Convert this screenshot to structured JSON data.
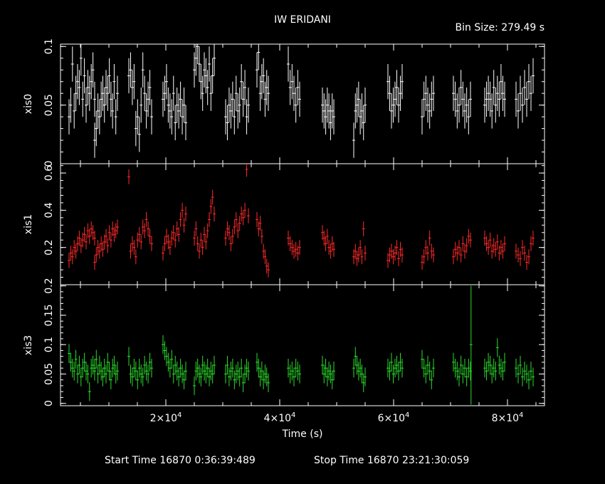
{
  "title": "IW ERIDANI",
  "bin_size": "Bin Size: 279.49 s",
  "footer": {
    "start": "Start Time 16870  0:36:39:489",
    "stop": "Stop Time 16870 23:21:30:059"
  },
  "chart_data": {
    "type": "scatter",
    "xlabel": "Time (s)",
    "xlim": [
      1500,
      86500
    ],
    "x_ticks": [
      {
        "value": 20000,
        "mantissa": "2×10",
        "exp": "4"
      },
      {
        "value": 40000,
        "mantissa": "4×10",
        "exp": "4"
      },
      {
        "value": 60000,
        "mantissa": "6×10",
        "exp": "4"
      },
      {
        "value": 80000,
        "mantissa": "8×10",
        "exp": "4"
      }
    ],
    "panels": [
      {
        "name": "xis0",
        "color": "#ffffff",
        "ylim": [
          0,
          0.102
        ],
        "err": 0.015,
        "ticks": [
          {
            "v": 0,
            "label": "0"
          },
          {
            "v": 0.05,
            "label": "0.05"
          },
          {
            "v": 0.1,
            "label": "0.1"
          }
        ],
        "segments": [
          {
            "x0": 3000,
            "x1": 7500,
            "y": [
              0.04,
              0.05,
              0.085,
              0.045,
              0.06,
              0.07,
              0.065,
              0.09,
              0.055,
              0.075,
              0.05,
              0.065,
              0.06,
              0.07,
              0.08,
              0.055
            ]
          },
          {
            "x0": 7500,
            "x1": 11500,
            "y": [
              0.02,
              0.03,
              0.045,
              0.04,
              0.055,
              0.06,
              0.05,
              0.065,
              0.06,
              0.075,
              0.055,
              0.045,
              0.07,
              0.04,
              0.06
            ]
          },
          {
            "x0": 13500,
            "x1": 17500,
            "y": [
              0.075,
              0.08,
              0.065,
              0.07,
              0.03,
              0.04,
              0.025,
              0.05,
              0.08,
              0.06,
              0.045,
              0.055,
              0.065,
              0.04
            ]
          },
          {
            "x0": 19500,
            "x1": 23500,
            "y": [
              0.055,
              0.06,
              0.07,
              0.05,
              0.045,
              0.04,
              0.06,
              0.035,
              0.05,
              0.045,
              0.055,
              0.04,
              0.05,
              0.035
            ]
          },
          {
            "x0": 25000,
            "x1": 28500,
            "y": [
              0.08,
              0.09,
              0.1,
              0.085,
              0.07,
              0.06,
              0.08,
              0.075,
              0.065,
              0.085,
              0.06,
              0.075,
              0.09
            ]
          },
          {
            "x0": 30500,
            "x1": 34500,
            "y": [
              0.04,
              0.035,
              0.05,
              0.045,
              0.055,
              0.04,
              0.06,
              0.045,
              0.05,
              0.07,
              0.055,
              0.065,
              0.04,
              0.05
            ]
          },
          {
            "x0": 36000,
            "x1": 38000,
            "y": [
              0.08,
              0.095,
              0.06,
              0.07,
              0.075,
              0.055,
              0.065,
              0.06
            ]
          },
          {
            "x0": 41500,
            "x1": 43500,
            "y": [
              0.085,
              0.065,
              0.07,
              0.06,
              0.05,
              0.065,
              0.055
            ]
          },
          {
            "x0": 47500,
            "x1": 49500,
            "y": [
              0.05,
              0.045,
              0.04,
              0.05,
              0.045,
              0.035,
              0.045,
              0.04
            ]
          },
          {
            "x0": 53000,
            "x1": 55000,
            "y": [
              0.02,
              0.045,
              0.05,
              0.055,
              0.04,
              0.045,
              0.035,
              0.05
            ]
          },
          {
            "x0": 59000,
            "x1": 61500,
            "y": [
              0.07,
              0.06,
              0.045,
              0.05,
              0.055,
              0.065,
              0.05,
              0.06,
              0.07
            ]
          },
          {
            "x0": 65000,
            "x1": 67000,
            "y": [
              0.04,
              0.055,
              0.06,
              0.05,
              0.045,
              0.055,
              0.06
            ]
          },
          {
            "x0": 70500,
            "x1": 73500,
            "y": [
              0.06,
              0.055,
              0.045,
              0.05,
              0.065,
              0.055,
              0.045,
              0.05,
              0.04,
              0.055
            ]
          },
          {
            "x0": 76000,
            "x1": 79500,
            "y": [
              0.05,
              0.055,
              0.06,
              0.055,
              0.045,
              0.065,
              0.05,
              0.06,
              0.055,
              0.07,
              0.06,
              0.055
            ]
          },
          {
            "x0": 81500,
            "x1": 84500,
            "y": [
              0.055,
              0.045,
              0.06,
              0.05,
              0.065,
              0.055,
              0.07,
              0.06,
              0.075
            ]
          }
        ]
      },
      {
        "name": "xis1",
        "color": "#ff2a2a",
        "ylim": [
          0,
          0.65
        ],
        "err": 0.04,
        "ticks": [
          {
            "v": 0.2,
            "label": "0.2"
          },
          {
            "v": 0.4,
            "label": "0.4"
          },
          {
            "v": 0.6,
            "label": "0.6"
          }
        ],
        "segments": [
          {
            "x0": 3000,
            "x1": 7500,
            "y": [
              0.13,
              0.17,
              0.15,
              0.2,
              0.18,
              0.22,
              0.25,
              0.21,
              0.24,
              0.27,
              0.23,
              0.29,
              0.26,
              0.3,
              0.28,
              0.25
            ]
          },
          {
            "x0": 7500,
            "x1": 11500,
            "y": [
              0.12,
              0.16,
              0.2,
              0.18,
              0.22,
              0.19,
              0.23,
              0.26,
              0.21,
              0.28,
              0.24,
              0.3,
              0.27,
              0.29,
              0.31
            ]
          },
          {
            "x0": 13500,
            "x1": 17500,
            "y": [
              0.58,
              0.18,
              0.22,
              0.2,
              0.15,
              0.24,
              0.27,
              0.23,
              0.31,
              0.29,
              0.35,
              0.3,
              0.26,
              0.22
            ]
          },
          {
            "x0": 19500,
            "x1": 23500,
            "y": [
              0.17,
              0.22,
              0.26,
              0.23,
              0.2,
              0.25,
              0.28,
              0.24,
              0.3,
              0.27,
              0.35,
              0.4,
              0.32,
              0.38
            ]
          },
          {
            "x0": 25000,
            "x1": 28500,
            "y": [
              0.25,
              0.3,
              0.22,
              0.18,
              0.24,
              0.2,
              0.27,
              0.23,
              0.29,
              0.35,
              0.42,
              0.47,
              0.38
            ]
          },
          {
            "x0": 30500,
            "x1": 34500,
            "y": [
              0.25,
              0.3,
              0.28,
              0.22,
              0.26,
              0.31,
              0.35,
              0.29,
              0.33,
              0.38,
              0.36,
              0.4,
              0.62,
              0.37
            ]
          },
          {
            "x0": 36000,
            "x1": 38000,
            "y": [
              0.35,
              0.3,
              0.33,
              0.26,
              0.18,
              0.15,
              0.1,
              0.08
            ]
          },
          {
            "x0": 41500,
            "x1": 43500,
            "y": [
              0.25,
              0.22,
              0.2,
              0.18,
              0.19,
              0.17,
              0.2
            ]
          },
          {
            "x0": 47500,
            "x1": 49500,
            "y": [
              0.28,
              0.25,
              0.22,
              0.26,
              0.2,
              0.18,
              0.22,
              0.19
            ]
          },
          {
            "x0": 53000,
            "x1": 55000,
            "y": [
              0.15,
              0.18,
              0.14,
              0.16,
              0.2,
              0.15,
              0.3,
              0.17
            ]
          },
          {
            "x0": 59000,
            "x1": 61500,
            "y": [
              0.13,
              0.16,
              0.18,
              0.15,
              0.17,
              0.2,
              0.14,
              0.19,
              0.16
            ]
          },
          {
            "x0": 65000,
            "x1": 67000,
            "y": [
              0.12,
              0.15,
              0.2,
              0.17,
              0.25,
              0.18,
              0.16
            ]
          },
          {
            "x0": 70500,
            "x1": 73500,
            "y": [
              0.15,
              0.19,
              0.17,
              0.2,
              0.16,
              0.22,
              0.18,
              0.21,
              0.26,
              0.24
            ]
          },
          {
            "x0": 76000,
            "x1": 79500,
            "y": [
              0.25,
              0.22,
              0.2,
              0.24,
              0.18,
              0.21,
              0.19,
              0.23,
              0.17,
              0.2,
              0.18,
              0.22
            ]
          },
          {
            "x0": 81500,
            "x1": 84500,
            "y": [
              0.18,
              0.16,
              0.14,
              0.2,
              0.17,
              0.12,
              0.15,
              0.22,
              0.25
            ]
          }
        ]
      },
      {
        "name": "xis3",
        "color": "#2bdc2b",
        "ylim": [
          -0.004,
          0.202
        ],
        "err": 0.016,
        "ticks": [
          {
            "v": 0,
            "label": "0"
          },
          {
            "v": 0.05,
            "label": "0.05"
          },
          {
            "v": 0.1,
            "label": "0.1"
          },
          {
            "v": 0.15,
            "label": "0.15"
          },
          {
            "v": 0.2,
            "label": "0.2"
          }
        ],
        "segments": [
          {
            "x0": 3000,
            "x1": 7500,
            "y": [
              0.085,
              0.07,
              0.06,
              0.055,
              0.075,
              0.05,
              0.065,
              0.045,
              0.06,
              0.07,
              0.055,
              0.05,
              0.02,
              0.06,
              0.065,
              0.055
            ]
          },
          {
            "x0": 7500,
            "x1": 11500,
            "y": [
              0.06,
              0.075,
              0.05,
              0.065,
              0.055,
              0.045,
              0.06,
              0.05,
              0.07,
              0.055,
              0.04,
              0.06,
              0.065,
              0.05,
              0.055
            ]
          },
          {
            "x0": 13500,
            "x1": 17500,
            "y": [
              0.08,
              0.05,
              0.045,
              0.06,
              0.055,
              0.04,
              0.06,
              0.05,
              0.045,
              0.065,
              0.055,
              0.05,
              0.07,
              0.06
            ]
          },
          {
            "x0": 19500,
            "x1": 23500,
            "y": [
              0.1,
              0.09,
              0.08,
              0.07,
              0.06,
              0.075,
              0.05,
              0.065,
              0.055,
              0.045,
              0.06,
              0.05,
              0.04,
              0.055
            ]
          },
          {
            "x0": 25000,
            "x1": 28500,
            "y": [
              0.03,
              0.055,
              0.06,
              0.05,
              0.045,
              0.065,
              0.055,
              0.05,
              0.06,
              0.045,
              0.055,
              0.05,
              0.065
            ]
          },
          {
            "x0": 30500,
            "x1": 34500,
            "y": [
              0.05,
              0.065,
              0.045,
              0.055,
              0.06,
              0.04,
              0.05,
              0.055,
              0.045,
              0.06,
              0.035,
              0.05,
              0.06,
              0.055
            ]
          },
          {
            "x0": 36000,
            "x1": 38000,
            "y": [
              0.07,
              0.06,
              0.045,
              0.055,
              0.04,
              0.05,
              0.045,
              0.035
            ]
          },
          {
            "x0": 41500,
            "x1": 43500,
            "y": [
              0.06,
              0.05,
              0.055,
              0.045,
              0.06,
              0.055,
              0.05
            ]
          },
          {
            "x0": 47500,
            "x1": 49500,
            "y": [
              0.065,
              0.05,
              0.06,
              0.045,
              0.055,
              0.05,
              0.04,
              0.055
            ]
          },
          {
            "x0": 53000,
            "x1": 55000,
            "y": [
              0.06,
              0.08,
              0.065,
              0.055,
              0.06,
              0.05,
              0.035,
              0.045
            ]
          },
          {
            "x0": 59000,
            "x1": 61500,
            "y": [
              0.06,
              0.055,
              0.07,
              0.05,
              0.06,
              0.065,
              0.055,
              0.07,
              0.06
            ]
          },
          {
            "x0": 65000,
            "x1": 67000,
            "y": [
              0.075,
              0.06,
              0.05,
              0.065,
              0.055,
              0.04,
              0.06
            ]
          },
          {
            "x0": 70500,
            "x1": 73500,
            "y": [
              0.07,
              0.06,
              0.055,
              0.045,
              0.065,
              0.05,
              0.06,
              0.045,
              0.06,
              0.055
            ]
          },
          {
            "x0": 76000,
            "x1": 79500,
            "y": [
              0.06,
              0.055,
              0.07,
              0.065,
              0.05,
              0.06,
              0.055,
              0.095,
              0.065,
              0.06,
              0.055,
              0.07
            ]
          },
          {
            "x0": 81500,
            "x1": 84500,
            "y": [
              0.06,
              0.05,
              0.065,
              0.045,
              0.055,
              0.05,
              0.04,
              0.055,
              0.045
            ]
          }
        ],
        "extra_points": [
          {
            "x": 73600,
            "y": 0.1,
            "lo": -0.002,
            "hi": 0.2
          }
        ]
      }
    ]
  }
}
